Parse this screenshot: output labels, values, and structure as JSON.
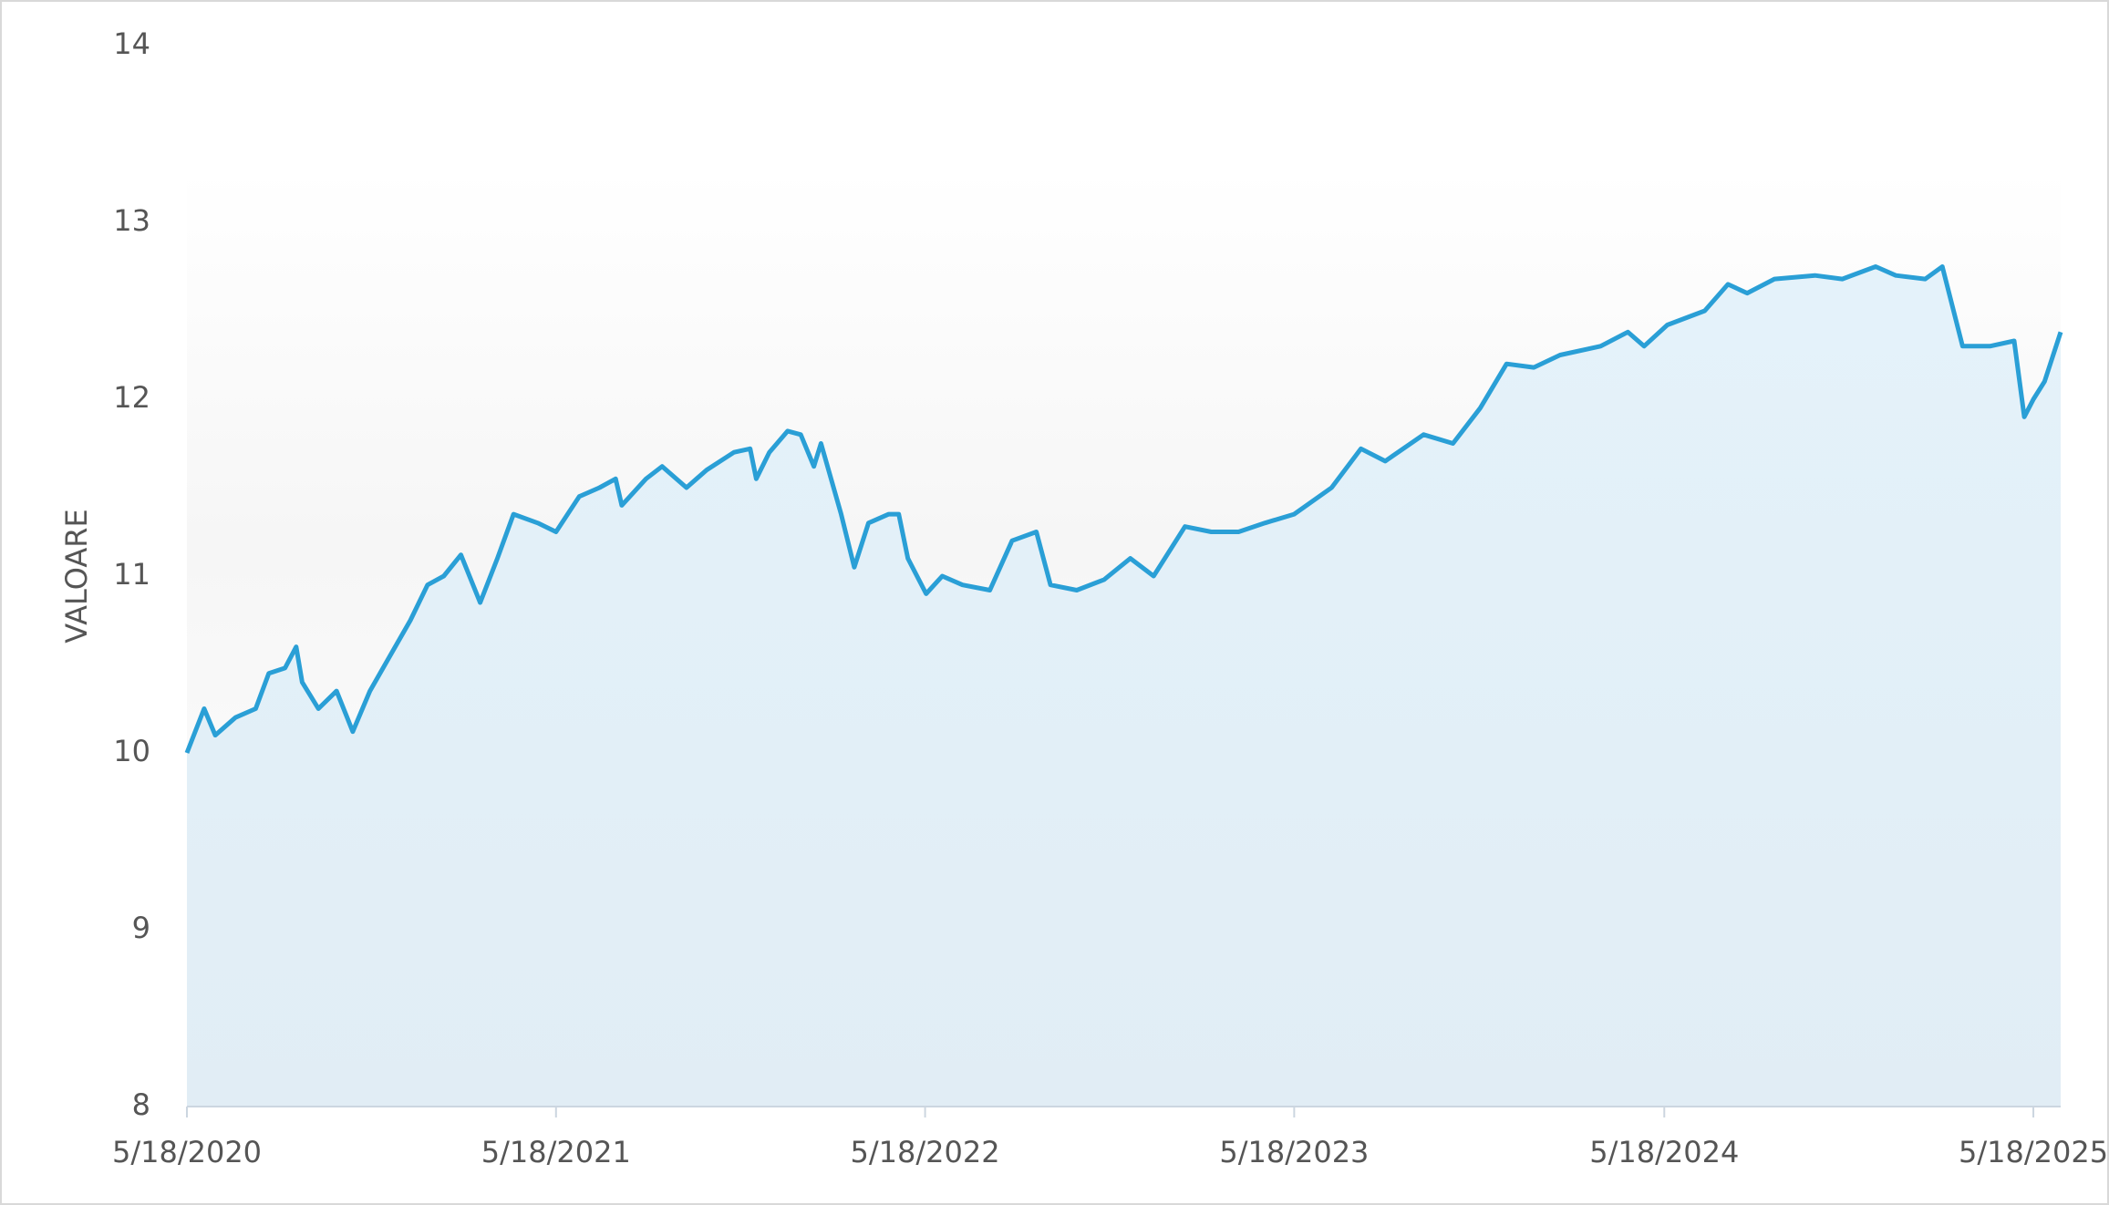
{
  "chart_data": {
    "type": "area",
    "y_label": "VALOARE",
    "x": [
      "2020-05-18",
      "2020-06-04",
      "2020-06-15",
      "2020-07-05",
      "2020-07-25",
      "2020-08-07",
      "2020-08-23",
      "2020-09-03",
      "2020-09-09",
      "2020-09-25",
      "2020-10-13",
      "2020-10-29",
      "2020-11-15",
      "2020-12-05",
      "2020-12-25",
      "2021-01-11",
      "2021-01-27",
      "2021-02-13",
      "2021-03-04",
      "2021-03-21",
      "2021-04-06",
      "2021-04-30",
      "2021-05-18",
      "2021-06-10",
      "2021-06-30",
      "2021-07-16",
      "2021-07-22",
      "2021-08-15",
      "2021-08-31",
      "2021-09-24",
      "2021-10-14",
      "2021-11-10",
      "2021-11-26",
      "2021-12-02",
      "2021-12-15",
      "2022-01-02",
      "2022-01-15",
      "2022-01-28",
      "2022-02-04",
      "2022-02-24",
      "2022-03-09",
      "2022-03-23",
      "2022-04-12",
      "2022-04-22",
      "2022-05-01",
      "2022-05-19",
      "2022-06-04",
      "2022-06-24",
      "2022-07-21",
      "2022-08-12",
      "2022-09-05",
      "2022-09-19",
      "2022-10-15",
      "2022-11-11",
      "2022-12-07",
      "2022-12-30",
      "2023-01-30",
      "2023-02-25",
      "2023-03-24",
      "2023-04-19",
      "2023-05-18",
      "2023-06-24",
      "2023-07-23",
      "2023-08-16",
      "2023-09-23",
      "2023-10-22",
      "2023-11-18",
      "2023-12-14",
      "2024-01-10",
      "2024-02-05",
      "2024-03-16",
      "2024-04-12",
      "2024-04-28",
      "2024-05-21",
      "2024-06-27",
      "2024-07-20",
      "2024-08-08",
      "2024-09-04",
      "2024-10-14",
      "2024-11-10",
      "2024-12-13",
      "2025-01-02",
      "2025-01-31",
      "2025-02-17",
      "2025-03-09",
      "2025-04-05",
      "2025-04-29",
      "2025-05-09",
      "2025-05-18",
      "2025-05-29",
      "2025-06-14"
    ],
    "series": [
      {
        "color": "#2a9fd6",
        "values": [
          10.0,
          10.25,
          10.1,
          10.2,
          10.25,
          10.45,
          10.48,
          10.6,
          10.4,
          10.25,
          10.35,
          10.12,
          10.35,
          10.55,
          10.75,
          10.95,
          11.0,
          11.12,
          10.85,
          11.1,
          11.35,
          11.3,
          11.25,
          11.45,
          11.5,
          11.55,
          11.4,
          11.55,
          11.62,
          11.5,
          11.6,
          11.7,
          11.72,
          11.55,
          11.7,
          11.82,
          11.8,
          11.62,
          11.75,
          11.35,
          11.05,
          11.3,
          11.35,
          11.35,
          11.1,
          10.9,
          11.0,
          10.95,
          10.92,
          11.2,
          11.25,
          10.95,
          10.92,
          10.98,
          11.1,
          11.0,
          11.28,
          11.25,
          11.25,
          11.3,
          11.35,
          11.5,
          11.72,
          11.65,
          11.8,
          11.75,
          11.95,
          12.2,
          12.18,
          12.25,
          12.3,
          12.38,
          12.3,
          12.42,
          12.5,
          12.65,
          12.6,
          12.68,
          12.7,
          12.68,
          12.75,
          12.7,
          12.68,
          12.75,
          12.3,
          12.3,
          12.33,
          11.9,
          12.0,
          12.1,
          12.38
        ]
      }
    ],
    "xlim": [
      "2020-05-18",
      "2025-06-14"
    ],
    "xticks": [
      {
        "value": "2020-05-18",
        "label": "5/18/2020"
      },
      {
        "value": "2021-05-18",
        "label": "5/18/2021"
      },
      {
        "value": "2022-05-18",
        "label": "5/18/2022"
      },
      {
        "value": "2023-05-18",
        "label": "5/18/2023"
      },
      {
        "value": "2024-05-18",
        "label": "5/18/2024"
      },
      {
        "value": "2025-05-18",
        "label": "5/18/2025"
      }
    ],
    "ylim": [
      8,
      14
    ],
    "yticks": [
      8,
      9,
      10,
      11,
      12,
      13,
      14
    ]
  }
}
